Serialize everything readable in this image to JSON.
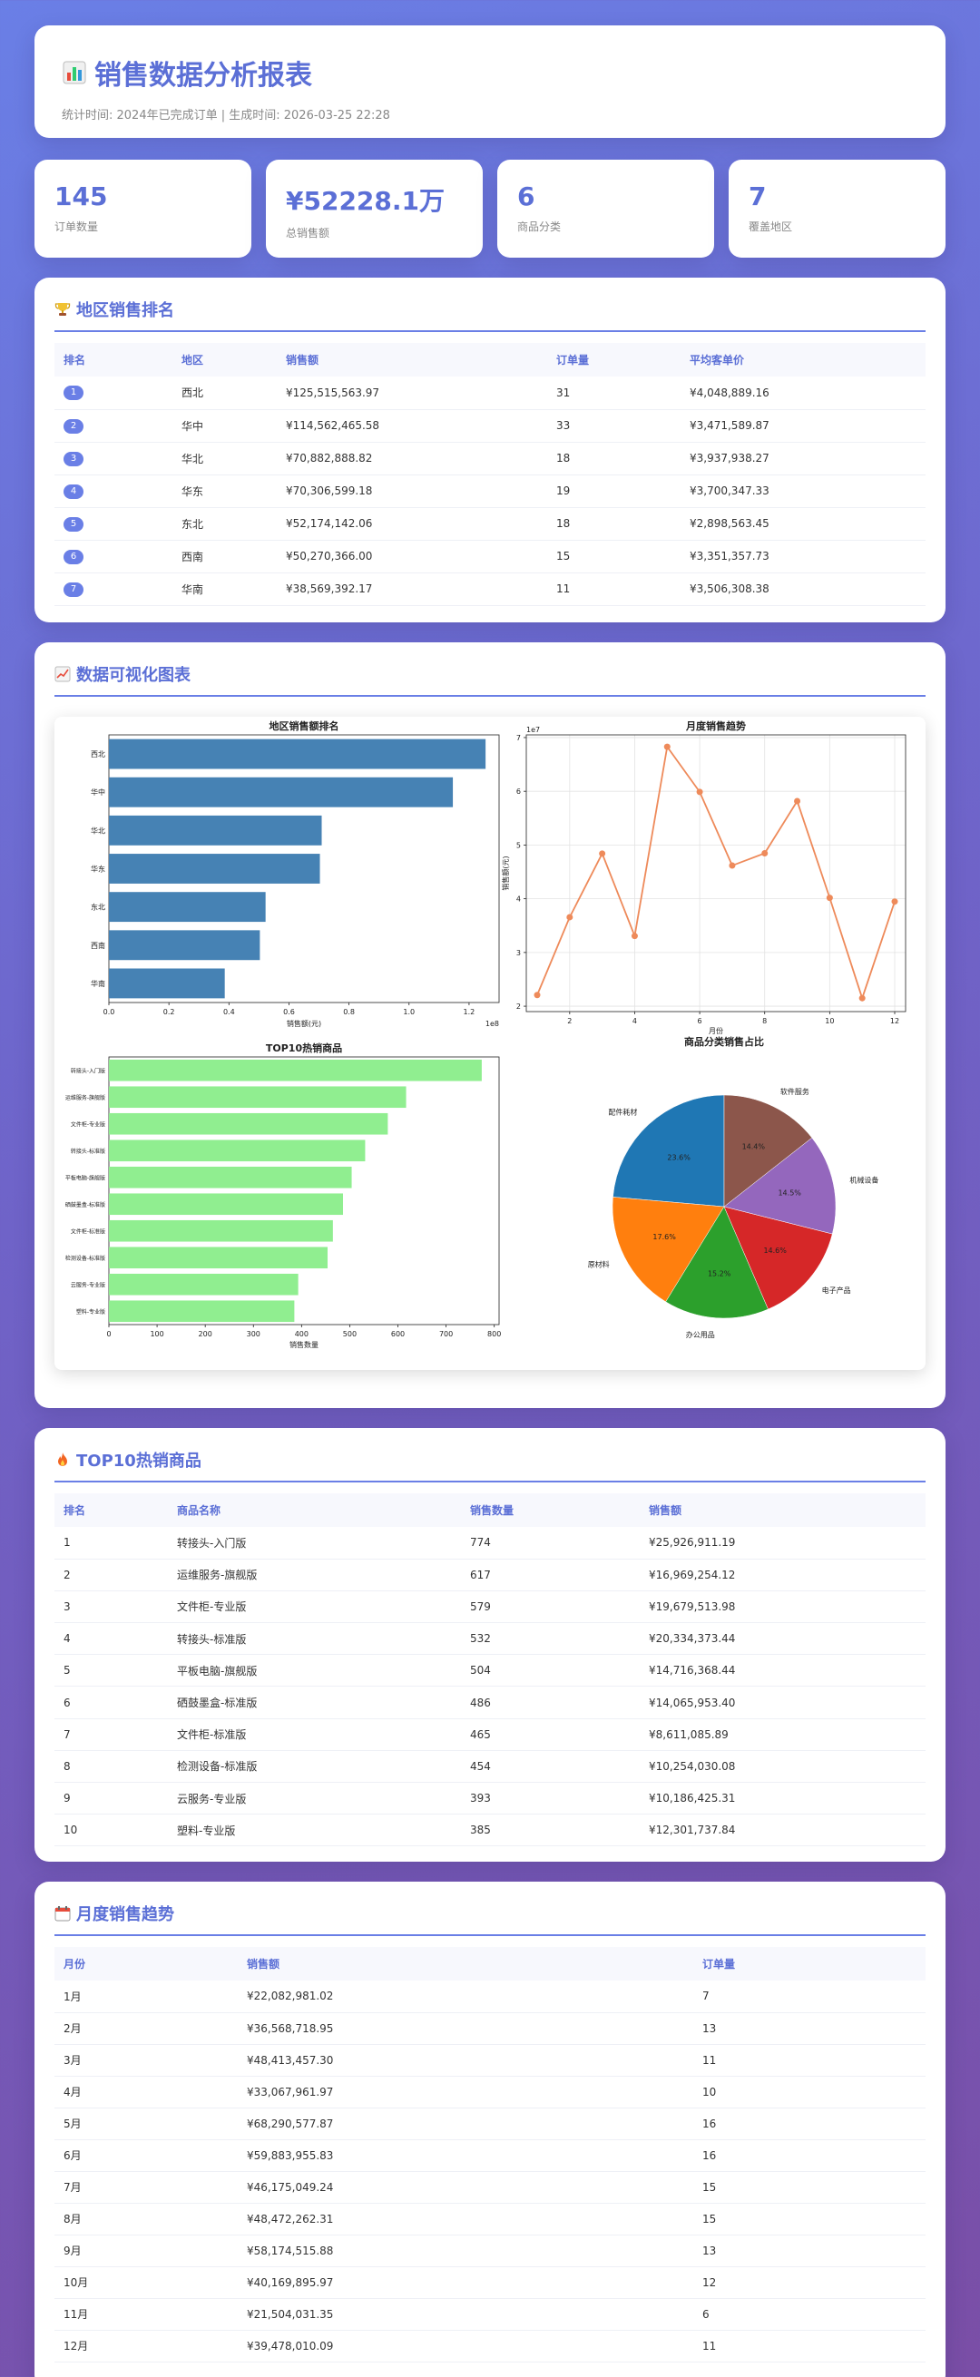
{
  "header": {
    "icon": "bar-chart-icon",
    "title": "销售数据分析报表",
    "subtitle": "统计时间: 2024年已完成订单 | 生成时间: 2026-03-25 22:28"
  },
  "stats": [
    {
      "value": "145",
      "label": "订单数量"
    },
    {
      "value": "¥52228.1万",
      "label": "总销售额"
    },
    {
      "value": "6",
      "label": "商品分类"
    },
    {
      "value": "7",
      "label": "覆盖地区"
    }
  ],
  "region": {
    "icon": "trophy-icon",
    "title": "地区销售排名",
    "headers": [
      "排名",
      "地区",
      "销售额",
      "订单量",
      "平均客单价"
    ],
    "rows": [
      {
        "rank": "1",
        "region": "西北",
        "sales": "¥125,515,563.97",
        "orders": "31",
        "avg": "¥4,048,889.16"
      },
      {
        "rank": "2",
        "region": "华中",
        "sales": "¥114,562,465.58",
        "orders": "33",
        "avg": "¥3,471,589.87"
      },
      {
        "rank": "3",
        "region": "华北",
        "sales": "¥70,882,888.82",
        "orders": "18",
        "avg": "¥3,937,938.27"
      },
      {
        "rank": "4",
        "region": "华东",
        "sales": "¥70,306,599.18",
        "orders": "19",
        "avg": "¥3,700,347.33"
      },
      {
        "rank": "5",
        "region": "东北",
        "sales": "¥52,174,142.06",
        "orders": "18",
        "avg": "¥2,898,563.45"
      },
      {
        "rank": "6",
        "region": "西南",
        "sales": "¥50,270,366.00",
        "orders": "15",
        "avg": "¥3,351,357.73"
      },
      {
        "rank": "7",
        "region": "华南",
        "sales": "¥38,569,392.17",
        "orders": "11",
        "avg": "¥3,506,308.38"
      }
    ]
  },
  "charts": {
    "icon": "line-chart-icon",
    "title": "数据可视化图表"
  },
  "chart_data": [
    {
      "type": "bar",
      "orientation": "horizontal",
      "title": "地区销售额排名",
      "xlabel": "销售额(元)",
      "ylabel": "",
      "x_scale_label": "1e8",
      "categories": [
        "西北",
        "华中",
        "华北",
        "华东",
        "东北",
        "西南",
        "华南"
      ],
      "values": [
        1.255,
        1.146,
        0.709,
        0.703,
        0.522,
        0.503,
        0.386
      ],
      "xlim": [
        0,
        1.3
      ],
      "xticks": [
        "0.0",
        "0.2",
        "0.4",
        "0.6",
        "0.8",
        "1.0",
        "1.2"
      ],
      "color": "#4682b4"
    },
    {
      "type": "line",
      "title": "月度销售趋势",
      "xlabel": "月份",
      "ylabel": "销售额(元)",
      "y_scale_label": "1e7",
      "x": [
        1,
        2,
        3,
        4,
        5,
        6,
        7,
        8,
        9,
        10,
        11,
        12
      ],
      "values": [
        2.208,
        3.657,
        4.841,
        3.307,
        6.829,
        5.988,
        4.618,
        4.847,
        5.817,
        4.017,
        2.15,
        3.948
      ],
      "ylim": [
        1.9,
        7.05
      ],
      "yticks": [
        "2",
        "3",
        "4",
        "5",
        "6",
        "7"
      ],
      "xticks": [
        "2",
        "4",
        "6",
        "8",
        "10",
        "12"
      ],
      "color": "#ee8a5a"
    },
    {
      "type": "bar",
      "orientation": "horizontal",
      "title": "TOP10热销商品",
      "xlabel": "销售数量",
      "ylabel": "",
      "categories": [
        "转接头-入门版",
        "运维服务-旗舰版",
        "文件柜-专业版",
        "转接头-标准版",
        "平板电脑-旗舰版",
        "硒鼓墨盒-标准版",
        "文件柜-标准版",
        "检测设备-标准版",
        "云服务-专业版",
        "塑料-专业版"
      ],
      "values": [
        774,
        617,
        579,
        532,
        504,
        486,
        465,
        454,
        393,
        385
      ],
      "xlim": [
        0,
        810
      ],
      "xticks": [
        "0",
        "100",
        "200",
        "300",
        "400",
        "500",
        "600",
        "700",
        "800"
      ],
      "color": "#90ee90"
    },
    {
      "type": "pie",
      "title": "商品分类销售占比",
      "labels": [
        "配件耗材",
        "原材料",
        "办公用品",
        "电子产品",
        "机械设备",
        "软件服务"
      ],
      "values": [
        23.6,
        17.6,
        15.2,
        14.6,
        14.5,
        14.4
      ],
      "value_labels": [
        "23.6%",
        "17.6%",
        "15.2%",
        "14.6%",
        "14.5%",
        "14.4%"
      ],
      "colors": [
        "#1f77b4",
        "#ff7f0e",
        "#2ca02c",
        "#d62728",
        "#9467bd",
        "#8c564b"
      ]
    }
  ],
  "top10": {
    "icon": "fire-icon",
    "title": "TOP10热销商品",
    "headers": [
      "排名",
      "商品名称",
      "销售数量",
      "销售额"
    ],
    "rows": [
      {
        "rank": "1",
        "name": "转接头-入门版",
        "qty": "774",
        "sales": "¥25,926,911.19"
      },
      {
        "rank": "2",
        "name": "运维服务-旗舰版",
        "qty": "617",
        "sales": "¥16,969,254.12"
      },
      {
        "rank": "3",
        "name": "文件柜-专业版",
        "qty": "579",
        "sales": "¥19,679,513.98"
      },
      {
        "rank": "4",
        "name": "转接头-标准版",
        "qty": "532",
        "sales": "¥20,334,373.44"
      },
      {
        "rank": "5",
        "name": "平板电脑-旗舰版",
        "qty": "504",
        "sales": "¥14,716,368.44"
      },
      {
        "rank": "6",
        "name": "硒鼓墨盒-标准版",
        "qty": "486",
        "sales": "¥14,065,953.40"
      },
      {
        "rank": "7",
        "name": "文件柜-标准版",
        "qty": "465",
        "sales": "¥8,611,085.89"
      },
      {
        "rank": "8",
        "name": "检测设备-标准版",
        "qty": "454",
        "sales": "¥10,254,030.08"
      },
      {
        "rank": "9",
        "name": "云服务-专业版",
        "qty": "393",
        "sales": "¥10,186,425.31"
      },
      {
        "rank": "10",
        "name": "塑料-专业版",
        "qty": "385",
        "sales": "¥12,301,737.84"
      }
    ]
  },
  "monthly": {
    "icon": "calendar-icon",
    "title": "月度销售趋势",
    "headers": [
      "月份",
      "销售额",
      "订单量"
    ],
    "rows": [
      {
        "month": "1月",
        "sales": "¥22,082,981.02",
        "orders": "7"
      },
      {
        "month": "2月",
        "sales": "¥36,568,718.95",
        "orders": "13"
      },
      {
        "month": "3月",
        "sales": "¥48,413,457.30",
        "orders": "11"
      },
      {
        "month": "4月",
        "sales": "¥33,067,961.97",
        "orders": "10"
      },
      {
        "month": "5月",
        "sales": "¥68,290,577.87",
        "orders": "16"
      },
      {
        "month": "6月",
        "sales": "¥59,883,955.83",
        "orders": "16"
      },
      {
        "month": "7月",
        "sales": "¥46,175,049.24",
        "orders": "15"
      },
      {
        "month": "8月",
        "sales": "¥48,472,262.31",
        "orders": "15"
      },
      {
        "month": "9月",
        "sales": "¥58,174,515.88",
        "orders": "13"
      },
      {
        "month": "10月",
        "sales": "¥40,169,895.97",
        "orders": "12"
      },
      {
        "month": "11月",
        "sales": "¥21,504,031.35",
        "orders": "6"
      },
      {
        "month": "12月",
        "sales": "¥39,478,010.09",
        "orders": "11"
      }
    ]
  }
}
